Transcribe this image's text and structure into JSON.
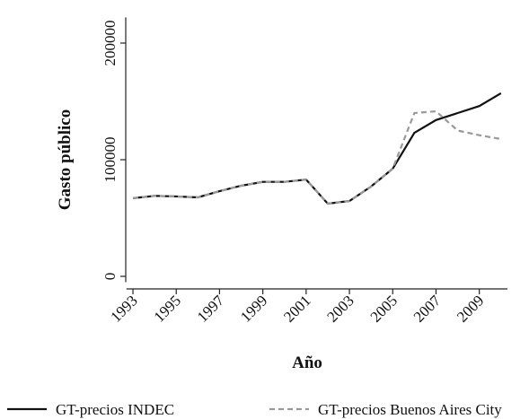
{
  "chart_data": {
    "type": "line",
    "x_label": "Año",
    "y_label": "Gasto público",
    "x": [
      1993,
      1994,
      1995,
      1996,
      1997,
      1998,
      1999,
      2000,
      2001,
      2002,
      2003,
      2004,
      2005,
      2006,
      2007,
      2008,
      2009,
      2010
    ],
    "series": [
      {
        "name": "GT-precios INDEC",
        "color": "#111111",
        "dash": "solid",
        "values": [
          67000,
          69000,
          68500,
          67700,
          73000,
          77700,
          81000,
          81000,
          83000,
          62300,
          64600,
          77000,
          92300,
          123000,
          134000,
          140000,
          146000,
          157000
        ]
      },
      {
        "name": "GT-precios Buenos Aires City",
        "color": "#999999",
        "dash": "dashed",
        "values": [
          67000,
          69000,
          68500,
          67700,
          73000,
          77700,
          81000,
          81000,
          83000,
          62300,
          64600,
          77000,
          92300,
          140000,
          141500,
          125000,
          121000,
          117700
        ]
      }
    ],
    "xlim": [
      1992.7,
      2010.3
    ],
    "xticks": [
      1993,
      1995,
      1997,
      1999,
      2001,
      2003,
      2005,
      2007,
      2009
    ],
    "ylim": [
      -5000,
      222000
    ],
    "yticks": [
      0,
      100000,
      200000
    ],
    "grid": false,
    "legend_position": "bottom"
  }
}
